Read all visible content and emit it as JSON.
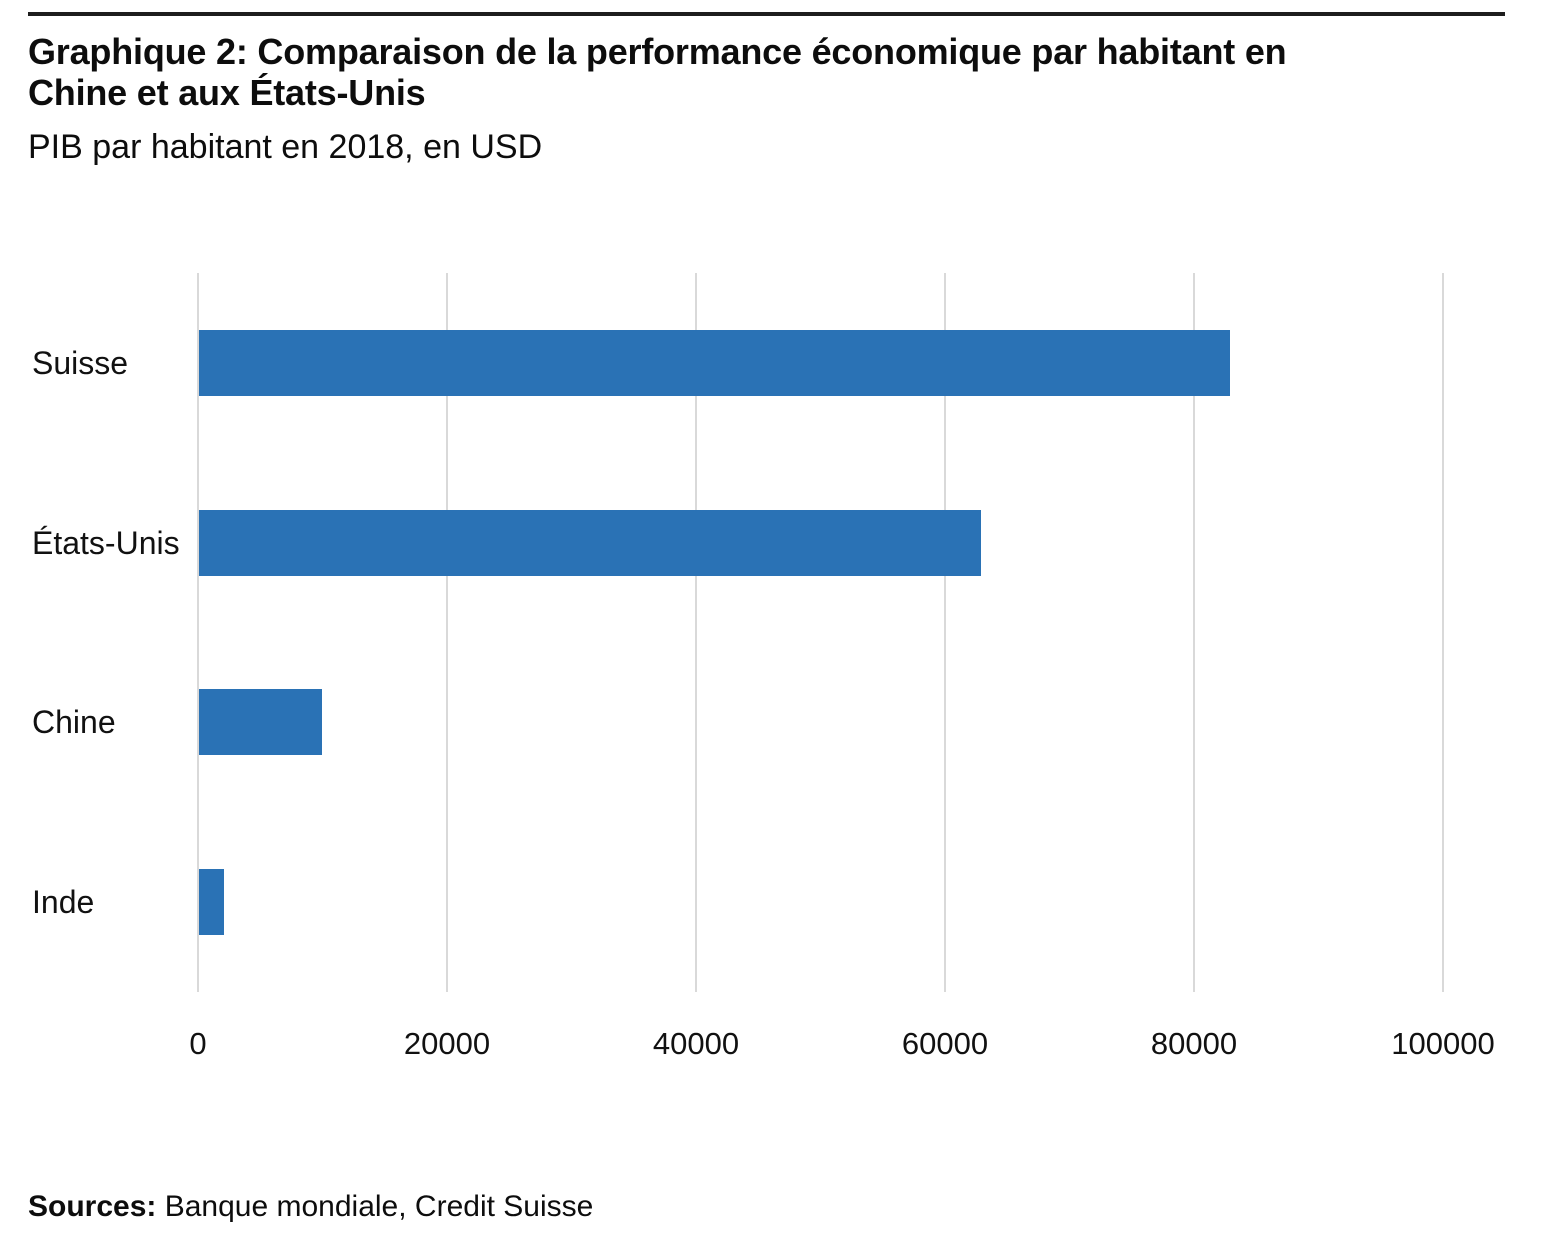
{
  "page": {
    "title_line1": "Graphique 2: Comparaison de la performance économique par habitant en",
    "title_line2": "Chine et aux États-Unis",
    "subtitle": "PIB par habitant en 2018, en USD",
    "source_label": "Sources:",
    "source_text": "Banque mondiale, Credit Suisse"
  },
  "colors": {
    "bar": "#2a72b5",
    "gridline": "#d9d9d9",
    "rule": "#1d1d1d"
  },
  "chart_data": {
    "type": "bar",
    "orientation": "horizontal",
    "title": "Graphique 2: Comparaison de la performance économique par habitant en Chine et aux États-Unis",
    "subtitle": "PIB par habitant en 2018, en USD",
    "categories": [
      "Suisse",
      "États-Unis",
      "Chine",
      "Inde"
    ],
    "values": [
      82800,
      62800,
      9900,
      2000
    ],
    "x_ticks": [
      0,
      20000,
      40000,
      60000,
      80000,
      100000
    ],
    "x_tick_labels": [
      "0",
      "20000",
      "40000",
      "60000",
      "80000",
      "100000"
    ],
    "xlabel": "",
    "ylabel": "",
    "xlim": [
      0,
      100000
    ],
    "grid": true,
    "legend": false,
    "source": "Sources: Banque mondiale, Credit Suisse"
  }
}
